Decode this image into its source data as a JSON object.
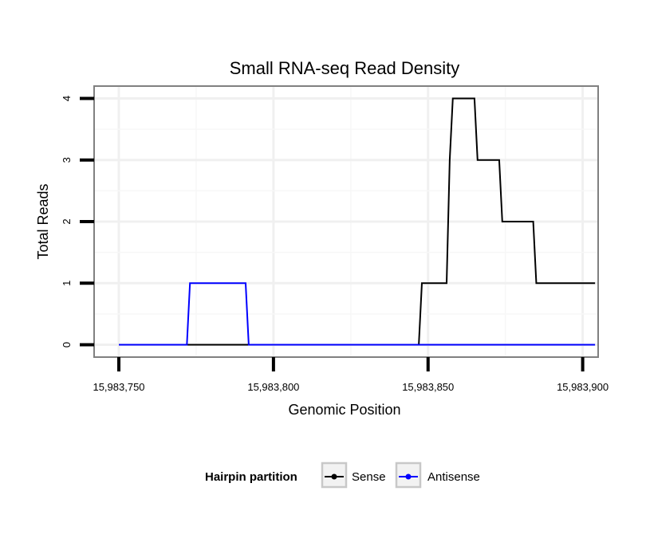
{
  "chart_data": {
    "type": "line",
    "title": "Small RNA-seq Read Density",
    "xlabel": "Genomic Position",
    "ylabel": "Total Reads",
    "xlim": [
      15983742,
      15983905
    ],
    "ylim": [
      -0.2,
      4.2
    ],
    "x_ticks": [
      15983750,
      15983800,
      15983850,
      15983900
    ],
    "x_tick_labels": [
      "15,983,750",
      "15,983,800",
      "15,983,850",
      "15,983,900"
    ],
    "y_ticks": [
      0,
      1,
      2,
      3,
      4
    ],
    "y_tick_labels": [
      "0",
      "1",
      "2",
      "3",
      "4"
    ],
    "grid": true,
    "legend": {
      "title": "Hairpin partition",
      "position": "bottom",
      "entries": [
        "Sense",
        "Antisense"
      ]
    },
    "series": [
      {
        "name": "Sense",
        "color": "#000000",
        "x": [
          15983750,
          15983847,
          15983848,
          15983856,
          15983857,
          15983858,
          15983865,
          15983866,
          15983873,
          15983874,
          15983884,
          15983885,
          15983904
        ],
        "y": [
          0,
          0,
          1,
          1,
          3,
          4,
          4,
          3,
          3,
          2,
          2,
          1,
          1
        ]
      },
      {
        "name": "Antisense",
        "color": "#0000ff",
        "x": [
          15983750,
          15983772,
          15983773,
          15983791,
          15983792,
          15983904
        ],
        "y": [
          0,
          0,
          1,
          1,
          0,
          0
        ]
      }
    ]
  }
}
